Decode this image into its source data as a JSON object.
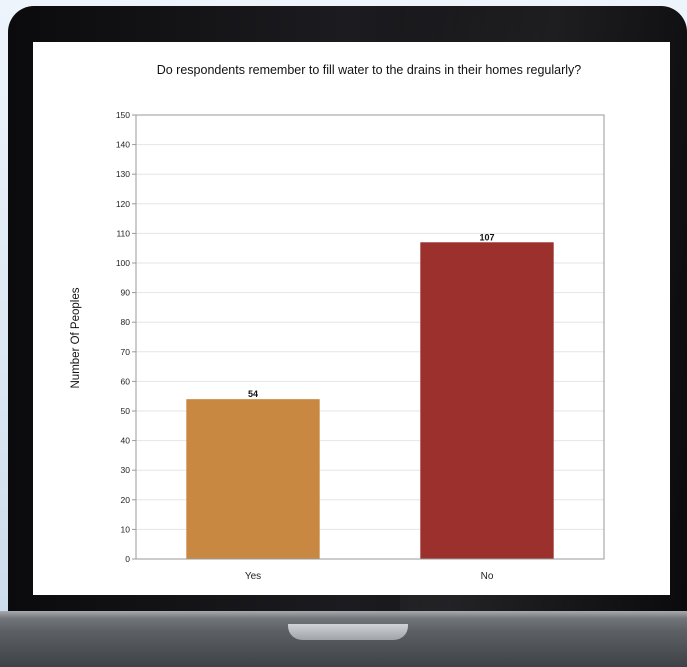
{
  "chart_data": {
    "type": "bar",
    "title": "Do respondents remember to fill water to the drains in their homes regularly?",
    "xlabel": "",
    "ylabel": "Number Of Peoples",
    "categories": [
      "Yes",
      "No"
    ],
    "values": [
      54,
      107
    ],
    "data_labels": [
      "54",
      "107"
    ],
    "colors": [
      "#c98842",
      "#9c302d"
    ],
    "ylim": [
      0,
      150
    ],
    "yticks": [
      0,
      10,
      20,
      30,
      40,
      50,
      60,
      70,
      80,
      90,
      100,
      110,
      120,
      130,
      140,
      150
    ],
    "grid": true,
    "legend": "none"
  }
}
